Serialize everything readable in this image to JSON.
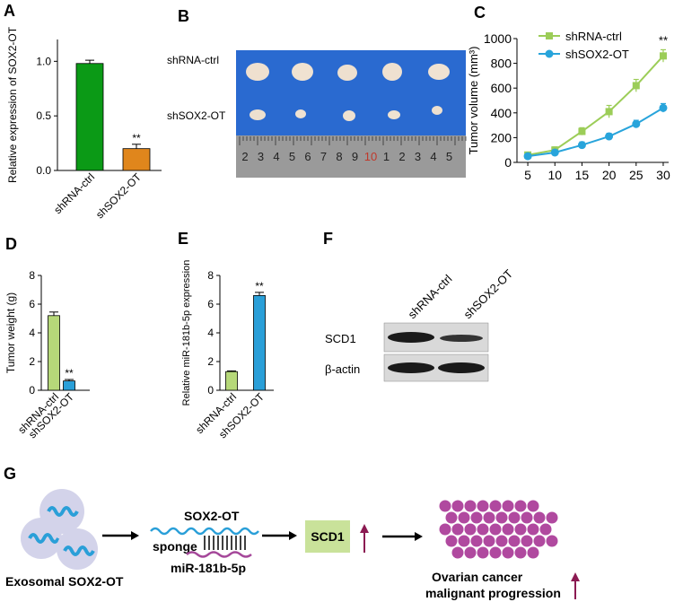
{
  "panels": {
    "A": {
      "label": "A"
    },
    "B": {
      "label": "B"
    },
    "C": {
      "label": "C"
    },
    "D": {
      "label": "D"
    },
    "E": {
      "label": "E"
    },
    "F": {
      "label": "F"
    },
    "G": {
      "label": "G"
    }
  },
  "photo": {
    "row1_label": "shRNA-ctrl",
    "row2_label": "shSOX2-OT",
    "ruler_digits": [
      "2",
      "3",
      "4",
      "5",
      "6",
      "7",
      "8",
      "9",
      "10",
      "1",
      "2",
      "3",
      "4",
      "5"
    ]
  },
  "western": {
    "lane_labels": [
      "shRNA-ctrl",
      "shSOX2-OT"
    ],
    "row_labels": [
      "SCD1",
      "β-actin"
    ]
  },
  "schematic": {
    "exosome_label": "Exosomal SOX2-OT",
    "sox2ot_label": "SOX2-OT",
    "sponge_label": "sponge",
    "mirna_label": "miR-181b-5p",
    "scd1_label": "SCD1",
    "outcome_line1": "Ovarian cancer",
    "outcome_line2": "malignant  progression",
    "colors": {
      "exosome": "#d3d3ea",
      "rna": "#2a9fd8",
      "mirna": "#a5489a",
      "scd1_box": "#c9e29a",
      "cell": "#b0499f",
      "up_arrow": "#8b1a52"
    }
  },
  "chart_data": [
    {
      "id": "A",
      "type": "bar",
      "ylabel": "Relative expression of SOX2-OT",
      "categories": [
        "shRNA-ctrl",
        "shSOX2-OT"
      ],
      "values": [
        0.98,
        0.2
      ],
      "errors": [
        0.03,
        0.04
      ],
      "colors": [
        "#0b9a16",
        "#e0861c"
      ],
      "ylim": [
        0,
        1.2
      ],
      "yticks": [
        "0.0",
        "0.5",
        "1.0"
      ],
      "annotations": [
        "",
        "**"
      ]
    },
    {
      "id": "C",
      "type": "line",
      "ylabel": "Tumor volume (mm³)",
      "x": [
        5,
        10,
        15,
        20,
        25,
        30
      ],
      "xticks": [
        "5",
        "10",
        "15",
        "20",
        "25",
        "30"
      ],
      "xlim": [
        3,
        31
      ],
      "ylim": [
        0,
        1000
      ],
      "yticks": [
        "0",
        "200",
        "400",
        "600",
        "800",
        "1000"
      ],
      "series": [
        {
          "name": "shRNA-ctrl",
          "color": "#9ccd58",
          "marker": "square",
          "values": [
            60,
            100,
            250,
            410,
            620,
            860
          ],
          "errors": [
            20,
            25,
            30,
            50,
            50,
            50
          ]
        },
        {
          "name": "shSOX2-OT",
          "color": "#28a4db",
          "marker": "circle",
          "values": [
            50,
            80,
            140,
            210,
            310,
            440
          ],
          "errors": [
            20,
            20,
            25,
            25,
            30,
            35
          ]
        }
      ],
      "annotation": "**",
      "legend": "top-left"
    },
    {
      "id": "D",
      "type": "bar",
      "ylabel": "Tumor weight (g)",
      "categories": [
        "shRNA-ctrl",
        "shSOX2-OT"
      ],
      "values": [
        5.2,
        0.65
      ],
      "errors": [
        0.25,
        0.1
      ],
      "colors": [
        "#b6d879",
        "#2a9fd8"
      ],
      "ylim": [
        0,
        8
      ],
      "yticks": [
        "0",
        "2",
        "4",
        "6",
        "8"
      ],
      "annotations": [
        "",
        "**"
      ]
    },
    {
      "id": "E",
      "type": "bar",
      "ylabel": "Relative miR-181b-5p expression",
      "categories": [
        "shRNA-ctrl",
        "shSOX2-OT"
      ],
      "values": [
        1.3,
        6.6
      ],
      "errors": [
        0.05,
        0.22
      ],
      "colors": [
        "#b6d879",
        "#2a9fd8"
      ],
      "ylim": [
        0,
        8
      ],
      "yticks": [
        "0",
        "2",
        "4",
        "6",
        "8"
      ],
      "annotations": [
        "",
        "**"
      ]
    }
  ]
}
